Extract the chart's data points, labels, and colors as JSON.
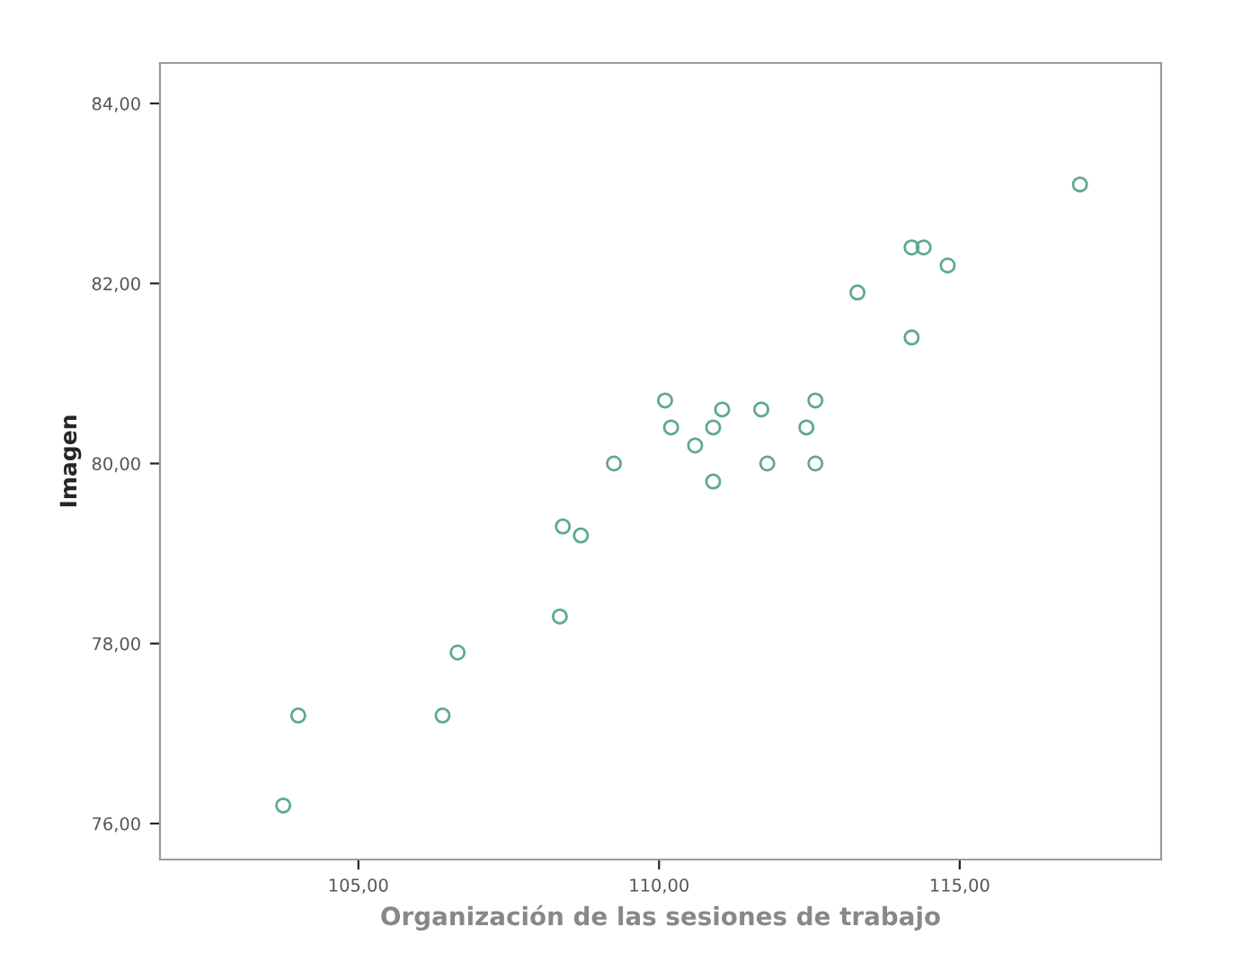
{
  "chart_data": {
    "type": "scatter",
    "xlabel": "Organización de las sesiones de trabajo",
    "ylabel": "Imagen",
    "x": [
      117.0,
      114.2,
      114.4,
      114.8,
      113.3,
      114.2,
      110.1,
      110.2,
      110.9,
      111.05,
      110.6,
      111.7,
      112.45,
      112.6,
      111.8,
      112.6,
      110.9,
      109.25,
      108.4,
      108.7,
      108.35,
      106.65,
      104.0,
      106.4,
      103.75
    ],
    "series": [
      {
        "color": "#5fa894",
        "values": [
          83.1,
          82.4,
          82.4,
          82.2,
          81.9,
          81.4,
          80.7,
          80.4,
          80.4,
          80.6,
          80.2,
          80.6,
          80.4,
          80.7,
          80.0,
          80.0,
          79.8,
          80.0,
          79.3,
          79.2,
          78.3,
          77.9,
          77.2,
          77.2,
          76.2
        ]
      }
    ],
    "marker": "circle",
    "xlim": [
      101.7,
      118.35
    ],
    "ylim": [
      75.6,
      84.45
    ],
    "xticks": [
      {
        "value": 105,
        "label": "105,00"
      },
      {
        "value": 110,
        "label": "110,00"
      },
      {
        "value": 115,
        "label": "115,00"
      }
    ],
    "yticks": [
      {
        "value": 76,
        "label": "76,00"
      },
      {
        "value": 78,
        "label": "78,00"
      },
      {
        "value": 80,
        "label": "80,00"
      },
      {
        "value": 82,
        "label": "82,00"
      },
      {
        "value": 84,
        "label": "84,00"
      }
    ],
    "grid": false
  }
}
